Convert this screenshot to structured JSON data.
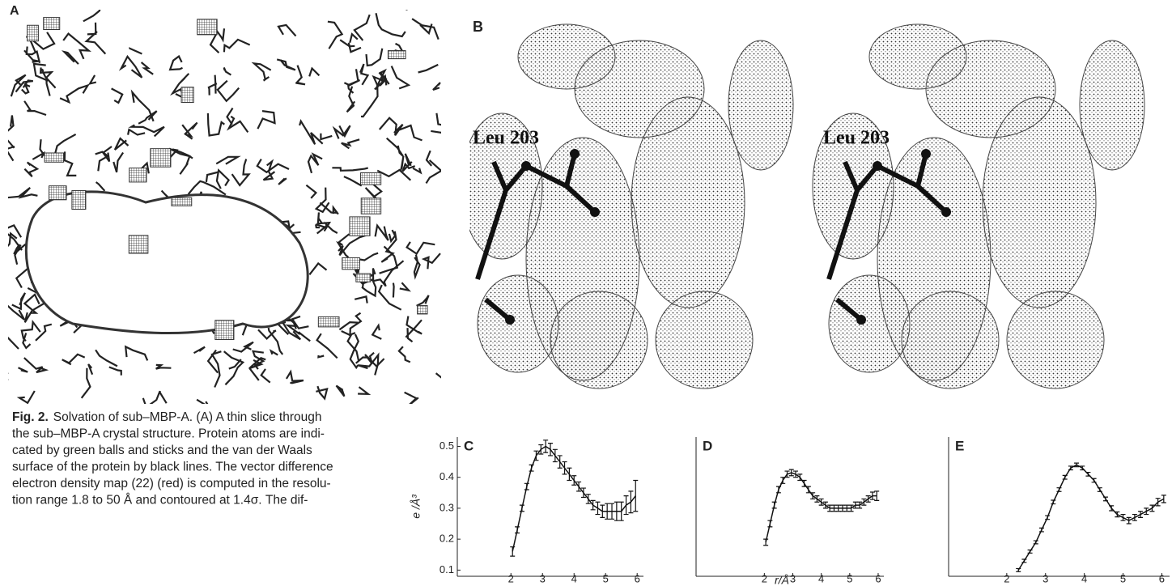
{
  "panels": {
    "a": "A",
    "b": "B",
    "b_labels": [
      "Leu 203",
      "Leu 203"
    ]
  },
  "caption": {
    "label": "Fig. 2.",
    "lines": [
      "Solvation of sub–MBP-A. (A) A thin slice through",
      "the sub–MBP-A crystal structure. Protein atoms are indi-",
      "cated by green balls and sticks and the van der Waals",
      "surface of the protein by black lines. The vector difference",
      "electron density map (22) (red) is computed in the resolu-",
      "tion range 1.8 to 50 Å and contoured at 1.4σ. The dif-"
    ]
  },
  "chart_data": [
    {
      "type": "line",
      "label": "C",
      "ylabel": "e /Å³",
      "color": "#111111",
      "x": [
        2.05,
        2.2,
        2.35,
        2.5,
        2.65,
        2.8,
        2.95,
        3.1,
        3.25,
        3.4,
        3.55,
        3.7,
        3.85,
        4.0,
        4.15,
        4.3,
        4.45,
        4.6,
        4.75,
        4.9,
        5.05,
        5.2,
        5.35,
        5.5,
        5.65,
        5.8,
        5.95
      ],
      "values": [
        0.16,
        0.23,
        0.3,
        0.37,
        0.43,
        0.47,
        0.49,
        0.5,
        0.49,
        0.47,
        0.45,
        0.43,
        0.41,
        0.39,
        0.37,
        0.35,
        0.33,
        0.31,
        0.3,
        0.29,
        0.29,
        0.29,
        0.29,
        0.29,
        0.31,
        0.32,
        0.34
      ],
      "errors": [
        0.015,
        0.01,
        0.01,
        0.01,
        0.01,
        0.015,
        0.015,
        0.02,
        0.02,
        0.02,
        0.02,
        0.02,
        0.02,
        0.015,
        0.015,
        0.015,
        0.015,
        0.015,
        0.02,
        0.02,
        0.025,
        0.025,
        0.03,
        0.03,
        0.03,
        0.035,
        0.05
      ],
      "xlim": [
        0.3,
        6.2
      ],
      "ylim": [
        0.08,
        0.53
      ],
      "xticks": [
        2,
        3,
        4,
        5,
        6
      ],
      "yticks": [
        0.1,
        0.2,
        0.3,
        0.4,
        0.5
      ]
    },
    {
      "type": "line",
      "label": "D",
      "xlabel": "r/Å",
      "color": "#111111",
      "x": [
        2.05,
        2.2,
        2.35,
        2.5,
        2.65,
        2.8,
        2.95,
        3.1,
        3.25,
        3.4,
        3.55,
        3.7,
        3.85,
        4.0,
        4.15,
        4.3,
        4.45,
        4.6,
        4.75,
        4.9,
        5.05,
        5.2,
        5.35,
        5.5,
        5.65,
        5.8,
        5.95
      ],
      "values": [
        0.19,
        0.25,
        0.31,
        0.36,
        0.39,
        0.41,
        0.415,
        0.41,
        0.4,
        0.38,
        0.36,
        0.34,
        0.33,
        0.32,
        0.31,
        0.3,
        0.3,
        0.3,
        0.3,
        0.3,
        0.3,
        0.31,
        0.31,
        0.32,
        0.33,
        0.34,
        0.34
      ],
      "errors": [
        0.01,
        0.01,
        0.01,
        0.01,
        0.01,
        0.01,
        0.01,
        0.01,
        0.01,
        0.01,
        0.01,
        0.01,
        0.01,
        0.01,
        0.01,
        0.01,
        0.01,
        0.01,
        0.01,
        0.01,
        0.01,
        0.01,
        0.01,
        0.01,
        0.01,
        0.012,
        0.015
      ],
      "xlim": [
        -0.4,
        6.2
      ],
      "ylim": [
        0.08,
        0.53
      ],
      "xticks": [
        2,
        3,
        4,
        5,
        6
      ]
    },
    {
      "type": "line",
      "label": "E",
      "color": "#111111",
      "x": [
        2.3,
        2.45,
        2.6,
        2.75,
        2.9,
        3.05,
        3.2,
        3.35,
        3.5,
        3.65,
        3.8,
        3.95,
        4.1,
        4.25,
        4.4,
        4.55,
        4.7,
        4.85,
        5.0,
        5.15,
        5.3,
        5.45,
        5.6,
        5.75,
        5.9,
        6.05
      ],
      "values": [
        0.1,
        0.13,
        0.16,
        0.19,
        0.23,
        0.27,
        0.32,
        0.36,
        0.4,
        0.43,
        0.44,
        0.43,
        0.41,
        0.39,
        0.36,
        0.33,
        0.3,
        0.28,
        0.27,
        0.26,
        0.27,
        0.28,
        0.29,
        0.3,
        0.32,
        0.33
      ],
      "errors": [
        0.005,
        0.005,
        0.005,
        0.005,
        0.006,
        0.006,
        0.006,
        0.006,
        0.006,
        0.006,
        0.006,
        0.006,
        0.006,
        0.006,
        0.006,
        0.006,
        0.008,
        0.008,
        0.01,
        0.01,
        0.01,
        0.01,
        0.01,
        0.01,
        0.012,
        0.012
      ],
      "xlim": [
        0.5,
        6.2
      ],
      "ylim": [
        0.08,
        0.53
      ],
      "xticks": [
        2,
        3,
        4,
        5,
        6
      ]
    }
  ]
}
